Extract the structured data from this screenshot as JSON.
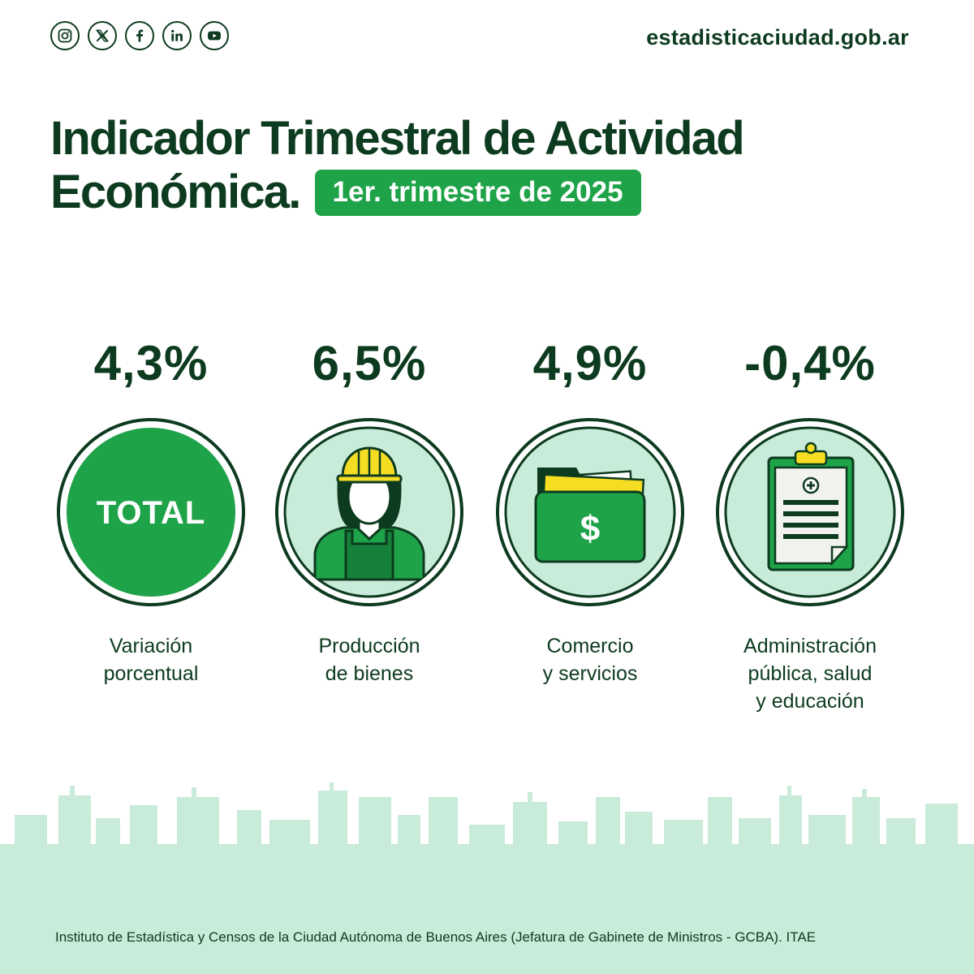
{
  "header": {
    "social_icons": [
      "instagram-icon",
      "x-icon",
      "facebook-icon",
      "linkedin-icon",
      "youtube-icon"
    ],
    "site": "estadisticaciudad.gob.ar"
  },
  "title": {
    "line1": "Indicador Trimestral de Actividad",
    "line2": "Económica.",
    "period": "1er. trimestre de 2025"
  },
  "indicators": [
    {
      "value": "4,3%",
      "icon_text": "TOTAL",
      "label_1": "Variación",
      "label_2": "porcentual",
      "label_3": ""
    },
    {
      "value": "6,5%",
      "icon": "construction-worker-icon",
      "label_1": "Producción",
      "label_2": "de bienes",
      "label_3": ""
    },
    {
      "value": "4,9%",
      "icon": "money-folder-icon",
      "label_1": "Comercio",
      "label_2": "y servicios",
      "label_3": ""
    },
    {
      "value": "-0,4%",
      "icon": "medical-clipboard-icon",
      "label_1": "Administración",
      "label_2": "pública, salud",
      "label_3": "y educación"
    }
  ],
  "footer": "Instituto de Estadística y Censos de la Ciudad Autónoma de Buenos Aires (Jefatura de Gabinete de Ministros - GCBA). ITAE",
  "colors": {
    "dark_green": "#0d3b1f",
    "brand_green": "#1fa348",
    "light_green": "#c9ebd9",
    "yellow": "#f5dd24"
  }
}
